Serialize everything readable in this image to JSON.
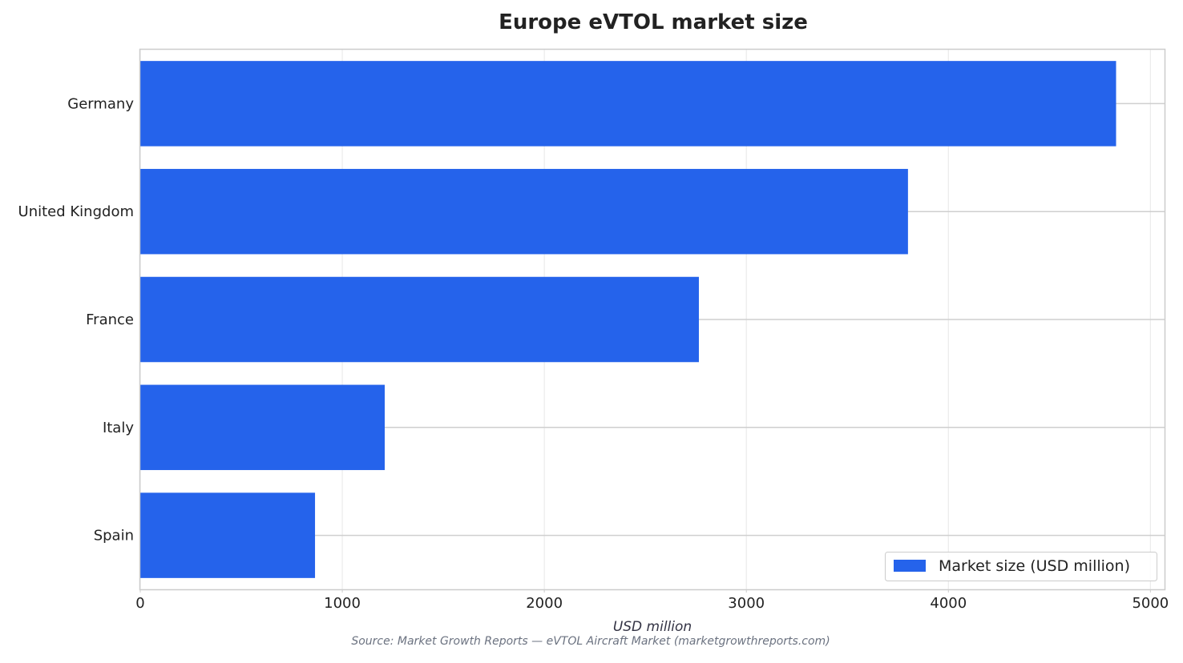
{
  "chart_data": {
    "type": "bar",
    "orientation": "horizontal",
    "title": "Europe eVTOL market size",
    "xlabel": "USD million",
    "ylabel": "",
    "categories": [
      "Germany",
      "United Kingdom",
      "France",
      "Italy",
      "Spain"
    ],
    "series": [
      {
        "name": "Market size (USD million)",
        "values": [
          4830,
          3800,
          2765,
          1210,
          865
        ],
        "color": "#2563eb"
      }
    ],
    "xlim": [
      0,
      5070
    ],
    "xticks": [
      0,
      1000,
      2000,
      3000,
      4000,
      5000
    ],
    "grid": true,
    "legend_position": "bottom-right",
    "source": "Source: Market Growth Reports — eVTOL Aircraft Market (marketgrowthreports.com)"
  }
}
